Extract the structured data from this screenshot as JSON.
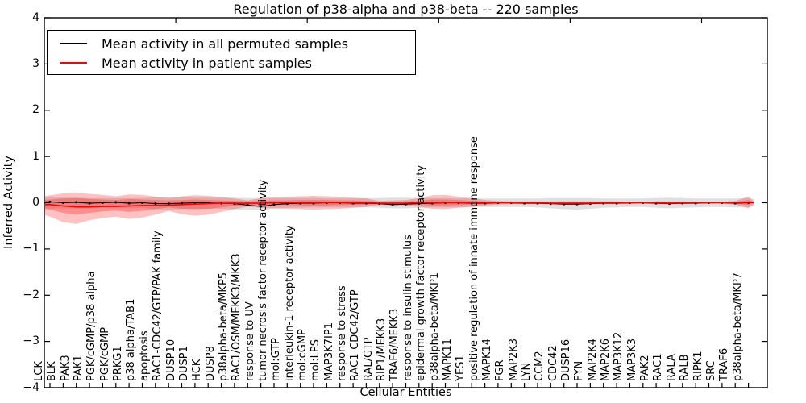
{
  "chart_data": {
    "type": "line",
    "title": "Regulation of p38-alpha and p38-beta -- 220 samples",
    "xlabel": "Cellular Entities",
    "ylabel": "Inferred Activity",
    "ylim": [
      -4,
      4
    ],
    "xlim": [
      0,
      55
    ],
    "yticks": [
      4,
      3,
      2,
      1,
      0,
      -1,
      -2,
      -3,
      -4
    ],
    "ytick_labels": [
      "4",
      "3",
      "2",
      "1",
      "0",
      "−1",
      "−2",
      "−3",
      "−4"
    ],
    "xticks_unlabeled": [
      10,
      20,
      30,
      40,
      50
    ],
    "grid": false,
    "legend_position": "upper left",
    "legend": [
      {
        "label": "Mean activity in all permuted samples",
        "color": "#000000"
      },
      {
        "label": "Mean activity in patient samples",
        "color": "#ff0000"
      }
    ],
    "colors": {
      "permuted_line": "#000000",
      "patient_line": "#ff0000",
      "permuted_band_fill": "#999999",
      "patient_band_fill": "#ff0000",
      "axis": "#000000",
      "background": "#ffffff"
    },
    "entities": [
      "LCK",
      "BLK",
      "PAK3",
      "PAK1",
      "PGK/cGMP/p38 alpha",
      "PGK/cGMP",
      "PRKG1",
      "p38 alpha/TAB1",
      "apoptosis",
      "RAC1-CDC42/GTP/PAK family",
      "DUSP10",
      "DUSP1",
      "HCK",
      "DUSP8",
      "p38alpha-beta/MKP5",
      "RAC1/OSM/MEKK3/MKK3",
      "response to UV",
      "tumor necrosis factor receptor activity",
      "mol:GTP",
      "interleukin-1 receptor activity",
      "mol:cGMP",
      "mol:LPS",
      "MAP3K7IP1",
      "response to stress",
      "RAC1-CDC42/GTP",
      "RAL/GTP",
      "RIP1/MEKK3",
      "TRAF6/MEKK3",
      "response to insulin stimulus",
      "epidermal growth factor receptor activity",
      "p38alpha-beta/MKP1",
      "MAPK11",
      "YES1",
      "positive regulation of innate immune response",
      "MAPK14",
      "FGR",
      "MAP2K3",
      "LYN",
      "CCM2",
      "CDC42",
      "DUSP16",
      "FYN",
      "MAP2K4",
      "MAP2K6",
      "MAP3K12",
      "MAP3K3",
      "PAK2",
      "RAC1",
      "RALA",
      "RALB",
      "RIPK1",
      "SRC",
      "TRAF6",
      "p38alpha-beta/MKP7"
    ],
    "series": [
      {
        "name": "Mean activity in all permuted samples",
        "values": [
          0.02,
          0,
          0.01,
          -0.01,
          0,
          0.01,
          -0.01,
          0,
          -0.02,
          -0.02,
          -0.01,
          0,
          0,
          -0.01,
          -0.02,
          -0.05,
          -0.08,
          -0.04,
          -0.02,
          -0.01,
          -0.01,
          0,
          0,
          -0.01,
          -0.01,
          -0.02,
          -0.04,
          -0.03,
          -0.02,
          -0.01,
          0,
          0,
          -0.01,
          -0.01,
          0,
          0,
          -0.01,
          -0.01,
          -0.02,
          -0.03,
          -0.03,
          -0.02,
          -0.01,
          -0.01,
          0,
          0,
          -0.01,
          -0.02,
          -0.01,
          -0.01,
          0,
          0,
          -0.01,
          0
        ]
      },
      {
        "name": "Mean activity in patient samples",
        "values": [
          -0.04,
          -0.07,
          -0.09,
          -0.09,
          -0.08,
          -0.08,
          -0.07,
          -0.06,
          -0.06,
          -0.05,
          -0.04,
          -0.03,
          -0.02,
          -0.01,
          -0.01,
          -0.01,
          -0.01,
          0,
          0,
          0,
          0,
          0,
          0,
          0,
          0,
          -0.01,
          -0.01,
          -0.01,
          0,
          0,
          0,
          0,
          0,
          0,
          0,
          0,
          0,
          0,
          -0.01,
          -0.01,
          -0.01,
          -0.01,
          0,
          0,
          0,
          0,
          0,
          -0.01,
          0,
          0,
          0,
          0,
          0,
          0.01
        ]
      }
    ],
    "bands": {
      "permuted_range": {
        "hi": [
          0.12,
          0.11,
          0.11,
          0.1,
          0.1,
          0.1,
          0.1,
          0.1,
          0.12,
          0.13,
          0.12,
          0.11,
          0.11,
          0.11,
          0.11,
          0.1,
          0.1,
          0.1,
          0.1,
          0.1,
          0.1,
          0.09,
          0.09,
          0.09,
          0.1,
          0.1,
          0.11,
          0.11,
          0.1,
          0.1,
          0.1,
          0.09,
          0.09,
          0.09,
          0.09,
          0.09,
          0.09,
          0.09,
          0.1,
          0.1,
          0.1,
          0.1,
          0.09,
          0.09,
          0.09,
          0.09,
          0.1,
          0.11,
          0.1,
          0.09,
          0.09,
          0.09,
          0.09,
          0.1
        ],
        "lo": [
          -0.13,
          -0.12,
          -0.12,
          -0.12,
          -0.11,
          -0.11,
          -0.12,
          -0.11,
          -0.14,
          -0.15,
          -0.14,
          -0.13,
          -0.13,
          -0.13,
          -0.14,
          -0.15,
          -0.16,
          -0.13,
          -0.11,
          -0.11,
          -0.1,
          -0.1,
          -0.1,
          -0.1,
          -0.1,
          -0.11,
          -0.12,
          -0.12,
          -0.11,
          -0.1,
          -0.1,
          -0.1,
          -0.09,
          -0.09,
          -0.09,
          -0.09,
          -0.09,
          -0.1,
          -0.12,
          -0.14,
          -0.15,
          -0.13,
          -0.11,
          -0.1,
          -0.09,
          -0.09,
          -0.11,
          -0.12,
          -0.11,
          -0.1,
          -0.09,
          -0.09,
          -0.1,
          -0.1
        ]
      },
      "patient_outer": {
        "hi": [
          0.16,
          0.2,
          0.22,
          0.19,
          0.17,
          0.14,
          0.18,
          0.17,
          0.13,
          0.1,
          0.14,
          0.16,
          0.15,
          0.12,
          0.09,
          0.05,
          0.1,
          0.12,
          0.13,
          0.14,
          0.15,
          0.14,
          0.13,
          0.11,
          0.09,
          0.04,
          0.05,
          0.06,
          0.1,
          0.16,
          0.17,
          0.13,
          0.1,
          0.06,
          0.04,
          0.03,
          0.03,
          0.03,
          0.03,
          0.03,
          0.03,
          0.03,
          0.03,
          0.03,
          0.02,
          0.02,
          0.03,
          0.03,
          0.03,
          0.02,
          0.02,
          0.02,
          0.04,
          0.13
        ],
        "lo": [
          -0.3,
          -0.42,
          -0.46,
          -0.38,
          -0.33,
          -0.3,
          -0.35,
          -0.32,
          -0.26,
          -0.18,
          -0.25,
          -0.28,
          -0.26,
          -0.2,
          -0.14,
          -0.08,
          -0.11,
          -0.12,
          -0.13,
          -0.14,
          -0.15,
          -0.14,
          -0.13,
          -0.11,
          -0.09,
          -0.05,
          -0.05,
          -0.06,
          -0.09,
          -0.13,
          -0.14,
          -0.11,
          -0.09,
          -0.06,
          -0.04,
          -0.03,
          -0.03,
          -0.03,
          -0.03,
          -0.04,
          -0.04,
          -0.03,
          -0.03,
          -0.03,
          -0.03,
          -0.02,
          -0.03,
          -0.03,
          -0.03,
          -0.02,
          -0.02,
          -0.02,
          -0.04,
          -0.12
        ]
      },
      "patient_inner": {
        "hi": [
          0.07,
          0.09,
          0.1,
          0.08,
          0.07,
          0.06,
          0.08,
          0.07,
          0.06,
          0.05,
          0.06,
          0.07,
          0.06,
          0.05,
          0.04,
          0.03,
          0.04,
          0.05,
          0.05,
          0.06,
          0.06,
          0.06,
          0.05,
          0.05,
          0.04,
          0.02,
          0.02,
          0.03,
          0.04,
          0.07,
          0.07,
          0.06,
          0.04,
          0.03,
          0.02,
          0.02,
          0.02,
          0.02,
          0.02,
          0.02,
          0.02,
          0.02,
          0.02,
          0.02,
          0.01,
          0.01,
          0.02,
          0.02,
          0.02,
          0.01,
          0.01,
          0.01,
          0.02,
          0.06
        ],
        "lo": [
          -0.15,
          -0.22,
          -0.26,
          -0.22,
          -0.19,
          -0.17,
          -0.2,
          -0.18,
          -0.14,
          -0.1,
          -0.13,
          -0.14,
          -0.13,
          -0.1,
          -0.07,
          -0.04,
          -0.05,
          -0.05,
          -0.05,
          -0.06,
          -0.06,
          -0.06,
          -0.05,
          -0.05,
          -0.04,
          -0.03,
          -0.02,
          -0.03,
          -0.04,
          -0.06,
          -0.06,
          -0.05,
          -0.04,
          -0.03,
          -0.02,
          -0.02,
          -0.02,
          -0.02,
          -0.02,
          -0.02,
          -0.02,
          -0.02,
          -0.02,
          -0.02,
          -0.02,
          -0.01,
          -0.02,
          -0.02,
          -0.02,
          -0.01,
          -0.01,
          -0.01,
          -0.02,
          -0.05
        ]
      }
    }
  }
}
